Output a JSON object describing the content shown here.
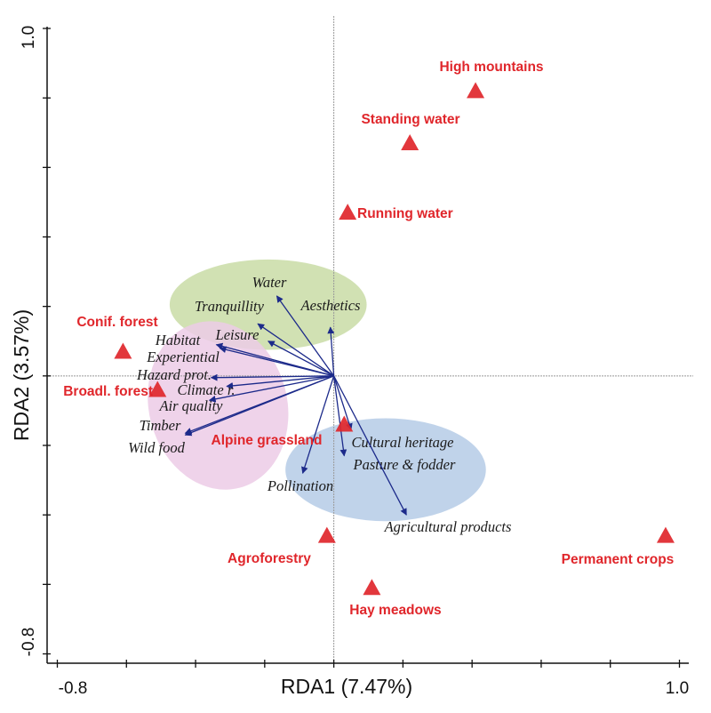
{
  "chart_data": {
    "type": "scatter",
    "subtype": "RDA biplot",
    "xlabel": "RDA1 (7.47%)",
    "ylabel": "RDA2 (3.57%)",
    "xlim": [
      -0.8,
      1.0
    ],
    "ylim": [
      -0.8,
      1.0
    ],
    "x_tick_labels": [
      "-0.8",
      "1.0"
    ],
    "y_tick_labels": [
      "-0.8",
      "1.0"
    ],
    "x_ticks": [
      -0.8,
      -0.6,
      -0.4,
      -0.2,
      0,
      0.2,
      0.4,
      0.6,
      0.8,
      1.0
    ],
    "y_ticks": [
      -0.8,
      -0.6,
      -0.4,
      -0.2,
      0,
      0.2,
      0.4,
      0.6,
      0.8,
      1.0
    ],
    "colors": {
      "site": "#e0262b",
      "arrow": "#1c2a8a",
      "green": "#c9dca6",
      "pink": "#eccbe6",
      "blue": "#b5cbe6"
    },
    "sites": [
      {
        "name": "High mountains",
        "x": 0.41,
        "y": 0.82
      },
      {
        "name": "Standing water",
        "x": 0.22,
        "y": 0.67
      },
      {
        "name": "Running water",
        "x": 0.04,
        "y": 0.47
      },
      {
        "name": "Conif. forest",
        "x": -0.61,
        "y": 0.07
      },
      {
        "name": "Broadl. forest",
        "x": -0.51,
        "y": -0.04
      },
      {
        "name": "Alpine grassland",
        "x": 0.03,
        "y": -0.14
      },
      {
        "name": "Agroforestry",
        "x": -0.02,
        "y": -0.46
      },
      {
        "name": "Hay meadows",
        "x": 0.11,
        "y": -0.61
      },
      {
        "name": "Permanent crops",
        "x": 0.96,
        "y": -0.46
      }
    ],
    "vectors": [
      {
        "name": "Water",
        "x": -0.165,
        "y": 0.23
      },
      {
        "name": "Tranquillity",
        "x": -0.22,
        "y": 0.15
      },
      {
        "name": "Aesthetics",
        "x": -0.01,
        "y": 0.14
      },
      {
        "name": "Leisure",
        "x": -0.19,
        "y": 0.1
      },
      {
        "name": "Habitat",
        "x": -0.34,
        "y": 0.09
      },
      {
        "name": "Experiential",
        "x": -0.33,
        "y": 0.08
      },
      {
        "name": "Hazard prot.",
        "x": -0.355,
        "y": -0.005
      },
      {
        "name": "Climate r.",
        "x": -0.31,
        "y": -0.03
      },
      {
        "name": "Air quality",
        "x": -0.36,
        "y": -0.07
      },
      {
        "name": "Timber",
        "x": -0.43,
        "y": -0.165
      },
      {
        "name": "Wild food",
        "x": -0.43,
        "y": -0.17
      },
      {
        "name": "Cultural heritage",
        "x": 0.05,
        "y": -0.155
      },
      {
        "name": "Pasture & fodder",
        "x": 0.03,
        "y": -0.23
      },
      {
        "name": "Pollination",
        "x": -0.09,
        "y": -0.28
      },
      {
        "name": "Agricultural products",
        "x": 0.21,
        "y": -0.4
      }
    ],
    "groups": [
      {
        "color": "green",
        "cx": -0.19,
        "cy": 0.205,
        "rx": 0.285,
        "ry": 0.13,
        "rotate": 0
      },
      {
        "color": "pink",
        "cx": -0.335,
        "cy": -0.085,
        "rx": 0.2,
        "ry": 0.245,
        "rotate": -15
      },
      {
        "color": "blue",
        "cx": 0.15,
        "cy": -0.27,
        "rx": 0.29,
        "ry": 0.148,
        "rotate": 0
      }
    ]
  }
}
